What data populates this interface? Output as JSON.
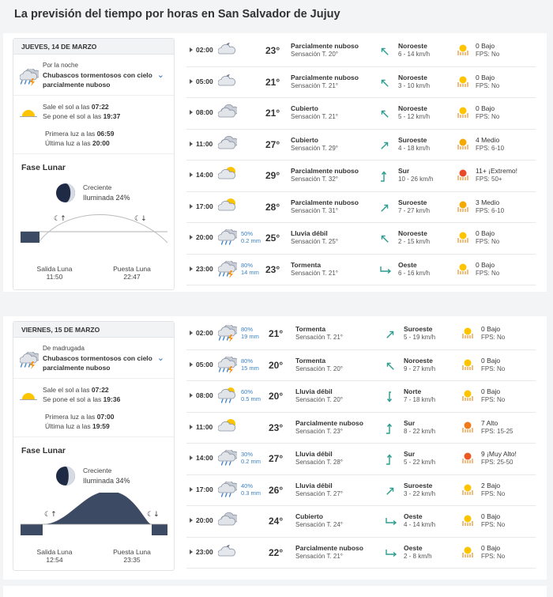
{
  "page": {
    "title": "La previsión del tiempo por horas en San Salvador de Jujuy"
  },
  "days": [
    {
      "date": "JUEVES, 14 DE MARZO",
      "summary": {
        "period": "Por la noche",
        "condition": "Chubascos tormentosos con cielo parcialmente nuboso",
        "sunrise_label": "Sale el sol a las",
        "sunrise": "07:22",
        "sunset_label": "Se pone el sol a las",
        "sunset": "19:37",
        "first_light_label": "Primera luz a las",
        "first_light": "06:59",
        "last_light_label": "Última luz a las",
        "last_light": "20:00"
      },
      "moon": {
        "title": "Fase Lunar",
        "phase": "Creciente",
        "illum_label": "Iluminada",
        "illum": "24%",
        "illum_fraction": 0.24,
        "rise_label": "Salida Luna",
        "rise": "11:50",
        "set_label": "Puesta Luna",
        "set": "22:47"
      },
      "hours": [
        {
          "time": "02:00",
          "icon": "night-partly-cloudy-icon",
          "prob": "",
          "mm": "",
          "temp": "23°",
          "cond": "Parcialmente nuboso",
          "sens": "Sensación T. 20°",
          "dir": "Noroeste",
          "speed": "6 - 14 km/h",
          "arrow": "nw",
          "uv": "0 Bajo",
          "fps": "FPS: No",
          "uvcolor": "#ffc400"
        },
        {
          "time": "05:00",
          "icon": "night-partly-cloudy-icon",
          "prob": "",
          "mm": "",
          "temp": "21°",
          "cond": "Parcialmente nuboso",
          "sens": "Sensación T. 21°",
          "dir": "Noroeste",
          "speed": "3 - 10 km/h",
          "arrow": "nw",
          "uv": "0 Bajo",
          "fps": "FPS: No",
          "uvcolor": "#ffc400"
        },
        {
          "time": "08:00",
          "icon": "cloudy-icon",
          "prob": "",
          "mm": "",
          "temp": "21°",
          "cond": "Cubierto",
          "sens": "Sensación T. 21°",
          "dir": "Noroeste",
          "speed": "5 - 12 km/h",
          "arrow": "nw",
          "uv": "0 Bajo",
          "fps": "FPS: No",
          "uvcolor": "#ffc400"
        },
        {
          "time": "11:00",
          "icon": "cloudy-icon",
          "prob": "",
          "mm": "",
          "temp": "27°",
          "cond": "Cubierto",
          "sens": "Sensación T. 29°",
          "dir": "Suroeste",
          "speed": "4 - 18 km/h",
          "arrow": "sw",
          "uv": "4 Medio",
          "fps": "FPS: 6-10",
          "uvcolor": "#f2a900"
        },
        {
          "time": "14:00",
          "icon": "day-partly-cloudy-icon",
          "prob": "",
          "mm": "",
          "temp": "29°",
          "cond": "Parcialmente nuboso",
          "sens": "Sensación T. 32°",
          "dir": "Sur",
          "speed": "10 - 26 km/h",
          "arrow": "s",
          "uv": "11+ ¡Extremo!",
          "fps": "FPS: 50+",
          "uvcolor": "#e9492b"
        },
        {
          "time": "17:00",
          "icon": "day-partly-cloudy-icon",
          "prob": "",
          "mm": "",
          "temp": "28°",
          "cond": "Parcialmente nuboso",
          "sens": "Sensación T. 31°",
          "dir": "Suroeste",
          "speed": "7 - 27 km/h",
          "arrow": "sw",
          "uv": "3 Medio",
          "fps": "FPS: 6-10",
          "uvcolor": "#f2a900"
        },
        {
          "time": "20:00",
          "icon": "rain-icon",
          "prob": "50%",
          "mm": "0.2 mm",
          "temp": "25°",
          "cond": "Lluvia débil",
          "sens": "Sensación T. 25°",
          "dir": "Noroeste",
          "speed": "2 - 15 km/h",
          "arrow": "nw",
          "uv": "0 Bajo",
          "fps": "FPS: No",
          "uvcolor": "#ffc400"
        },
        {
          "time": "23:00",
          "icon": "storm-icon",
          "prob": "80%",
          "mm": "14 mm",
          "temp": "23°",
          "cond": "Tormenta",
          "sens": "Sensación T. 21°",
          "dir": "Oeste",
          "speed": "6 - 16 km/h",
          "arrow": "w",
          "uv": "0 Bajo",
          "fps": "FPS: No",
          "uvcolor": "#ffc400"
        }
      ]
    },
    {
      "date": "VIERNES, 15 DE MARZO",
      "summary": {
        "period": "De madrugada",
        "condition": "Chubascos tormentosos con cielo parcialmente nuboso",
        "sunrise_label": "Sale el sol a las",
        "sunrise": "07:22",
        "sunset_label": "Se pone el sol a las",
        "sunset": "19:36",
        "first_light_label": "Primera luz a las",
        "first_light": "07:00",
        "last_light_label": "Última luz a las",
        "last_light": "19:59"
      },
      "moon": {
        "title": "Fase Lunar",
        "phase": "Creciente",
        "illum_label": "Iluminada",
        "illum": "34%",
        "illum_fraction": 0.34,
        "rise_label": "Salida Luna",
        "rise": "12:54",
        "set_label": "Puesta Luna",
        "set": "23:35"
      },
      "hours": [
        {
          "time": "02:00",
          "icon": "storm-icon",
          "prob": "80%",
          "mm": "19 mm",
          "temp": "21°",
          "cond": "Tormenta",
          "sens": "Sensación T. 21°",
          "dir": "Suroeste",
          "speed": "5 - 19 km/h",
          "arrow": "sw",
          "uv": "0 Bajo",
          "fps": "FPS: No",
          "uvcolor": "#ffc400"
        },
        {
          "time": "05:00",
          "icon": "storm-icon",
          "prob": "80%",
          "mm": "15 mm",
          "temp": "20°",
          "cond": "Tormenta",
          "sens": "Sensación T. 20°",
          "dir": "Noroeste",
          "speed": "9 - 27 km/h",
          "arrow": "nw",
          "uv": "0 Bajo",
          "fps": "FPS: No",
          "uvcolor": "#ffc400"
        },
        {
          "time": "08:00",
          "icon": "day-rain-icon",
          "prob": "60%",
          "mm": "0.5 mm",
          "temp": "20°",
          "cond": "Lluvia débil",
          "sens": "Sensación T. 20°",
          "dir": "Norte",
          "speed": "7 - 18 km/h",
          "arrow": "n",
          "uv": "0 Bajo",
          "fps": "FPS: No",
          "uvcolor": "#ffc400"
        },
        {
          "time": "11:00",
          "icon": "day-partly-cloudy-icon",
          "prob": "",
          "mm": "",
          "temp": "23°",
          "cond": "Parcialmente nuboso",
          "sens": "Sensación T. 23°",
          "dir": "Sur",
          "speed": "8 - 22 km/h",
          "arrow": "s",
          "uv": "7 Alto",
          "fps": "FPS: 15-25",
          "uvcolor": "#f07a1a"
        },
        {
          "time": "14:00",
          "icon": "rain-icon",
          "prob": "30%",
          "mm": "0.2 mm",
          "temp": "27°",
          "cond": "Lluvia débil",
          "sens": "Sensación T. 28°",
          "dir": "Sur",
          "speed": "5 - 22 km/h",
          "arrow": "s",
          "uv": "9 ¡Muy Alto!",
          "fps": "FPS: 25-50",
          "uvcolor": "#ea5a22"
        },
        {
          "time": "17:00",
          "icon": "rain-icon",
          "prob": "40%",
          "mm": "0.3 mm",
          "temp": "26°",
          "cond": "Lluvia débil",
          "sens": "Sensación T. 27°",
          "dir": "Suroeste",
          "speed": "3 - 22 km/h",
          "arrow": "sw",
          "uv": "2 Bajo",
          "fps": "FPS: No",
          "uvcolor": "#ffc400"
        },
        {
          "time": "20:00",
          "icon": "cloudy-icon",
          "prob": "",
          "mm": "",
          "temp": "24°",
          "cond": "Cubierto",
          "sens": "Sensación T. 24°",
          "dir": "Oeste",
          "speed": "4 - 14 km/h",
          "arrow": "w",
          "uv": "0 Bajo",
          "fps": "FPS: No",
          "uvcolor": "#ffc400"
        },
        {
          "time": "23:00",
          "icon": "night-partly-cloudy-icon",
          "prob": "",
          "mm": "",
          "temp": "22°",
          "cond": "Parcialmente nuboso",
          "sens": "Sensación T. 21°",
          "dir": "Oeste",
          "speed": "2 - 8 km/h",
          "arrow": "w",
          "uv": "0 Bajo",
          "fps": "FPS: No",
          "uvcolor": "#ffc400"
        }
      ]
    }
  ]
}
